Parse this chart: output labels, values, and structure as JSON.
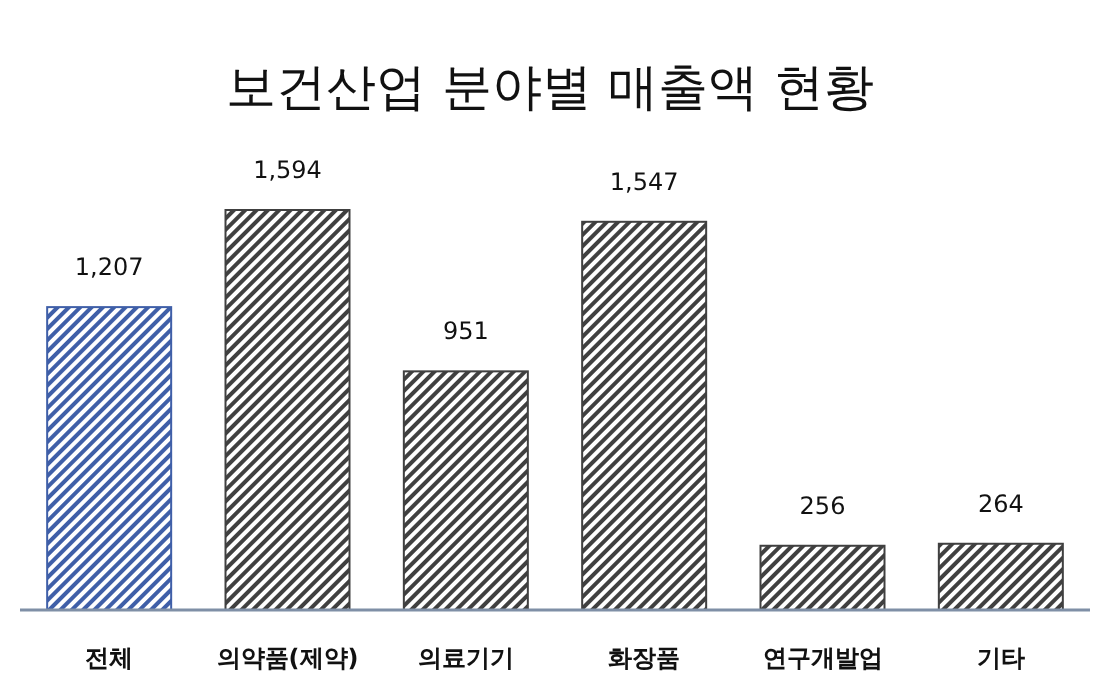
{
  "chart_data": {
    "type": "bar",
    "title": "보건산업 분야별 매출액 현황",
    "categories": [
      "전체",
      "의약품(제약)",
      "의료기기",
      "화장품",
      "연구개발업",
      "기타"
    ],
    "values": [
      1207,
      1594,
      951,
      1547,
      256,
      264
    ],
    "value_labels": [
      "1,207",
      "1,594",
      "951",
      "1,547",
      "256",
      "264"
    ],
    "colors": [
      "#3f5fa8",
      "#404040",
      "#404040",
      "#404040",
      "#404040",
      "#404040"
    ]
  }
}
